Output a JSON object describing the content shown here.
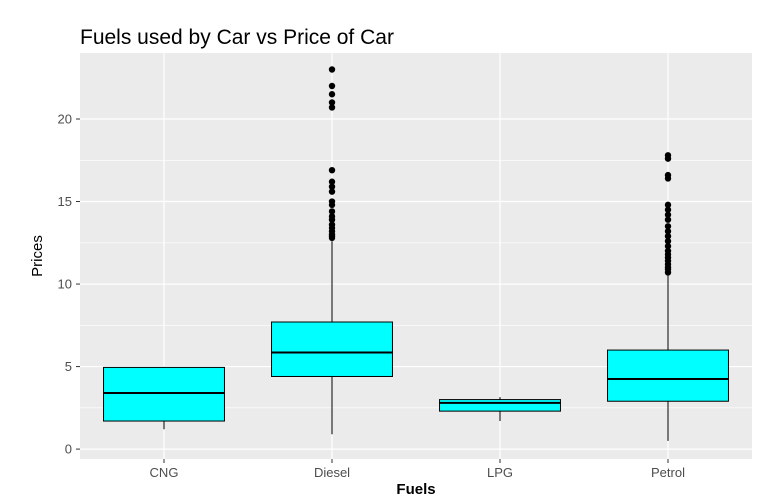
{
  "chart_data": {
    "type": "boxplot",
    "title": "Fuels used by Car vs Price of Car",
    "xlabel": "Fuels",
    "ylabel": "Prices",
    "categories": [
      "CNG",
      "Diesel",
      "LPG",
      "Petrol"
    ],
    "ylim": [
      -0.6,
      24
    ],
    "yticks": [
      0,
      5,
      10,
      15,
      20
    ],
    "grid": true,
    "colors": {
      "panel_background": "#ebebeb",
      "gridline": "#ffffff",
      "box_fill": "#00ffff",
      "box_outline": "#000000",
      "outlier": "#000000"
    },
    "boxes": [
      {
        "category": "CNG",
        "whisker_low": 1.2,
        "q1": 1.7,
        "median": 3.4,
        "q3": 4.95,
        "whisker_high": 4.95,
        "outliers": []
      },
      {
        "category": "Diesel",
        "whisker_low": 0.9,
        "q1": 4.4,
        "median": 5.85,
        "q3": 7.7,
        "whisker_high": 12.6,
        "outliers": [
          12.8,
          12.9,
          13.0,
          13.2,
          13.4,
          13.6,
          13.9,
          14.1,
          14.4,
          14.8,
          15.0,
          15.6,
          15.9,
          16.2,
          16.9,
          20.7,
          21.0,
          21.5,
          22.0,
          23.0
        ]
      },
      {
        "category": "LPG",
        "whisker_low": 1.7,
        "q1": 2.3,
        "median": 2.8,
        "q3": 3.0,
        "whisker_high": 3.15,
        "outliers": []
      },
      {
        "category": "Petrol",
        "whisker_low": 0.5,
        "q1": 2.9,
        "median": 4.25,
        "q3": 6.0,
        "whisker_high": 10.5,
        "outliers": [
          10.7,
          10.9,
          11.0,
          11.2,
          11.4,
          11.6,
          11.8,
          12.0,
          12.3,
          12.6,
          12.9,
          13.2,
          13.5,
          13.9,
          14.2,
          14.5,
          14.8,
          16.4,
          16.6,
          17.6,
          17.8
        ]
      }
    ]
  }
}
